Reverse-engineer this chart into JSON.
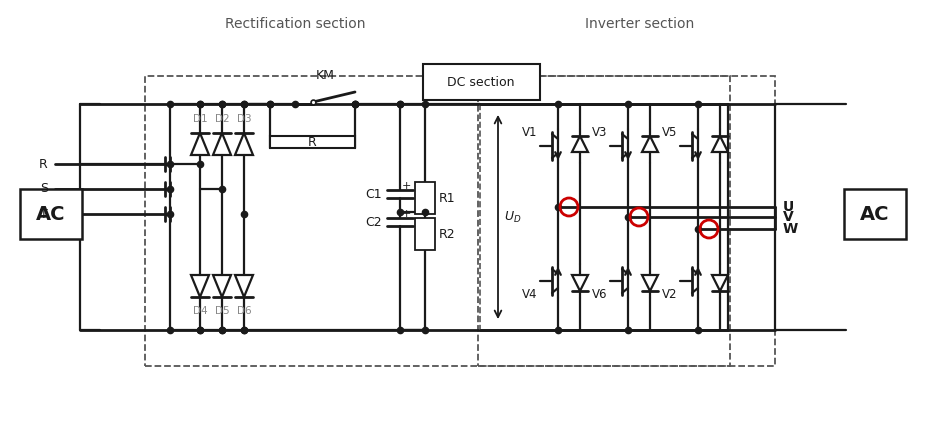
{
  "bg_border_color": "#29b6e8",
  "colors": {
    "line": "#1a1a1a",
    "dashed": "#555555",
    "red_circle": "#cc0000",
    "label_gray": "#888888",
    "text_dark": "#1a1a1a"
  },
  "sections": {
    "rectification_label": "Rectification section",
    "inverter_label": "Inverter section",
    "dc_label": "DC section"
  },
  "layout": {
    "fig_w": 9.5,
    "fig_h": 4.34,
    "dpi": 100
  }
}
